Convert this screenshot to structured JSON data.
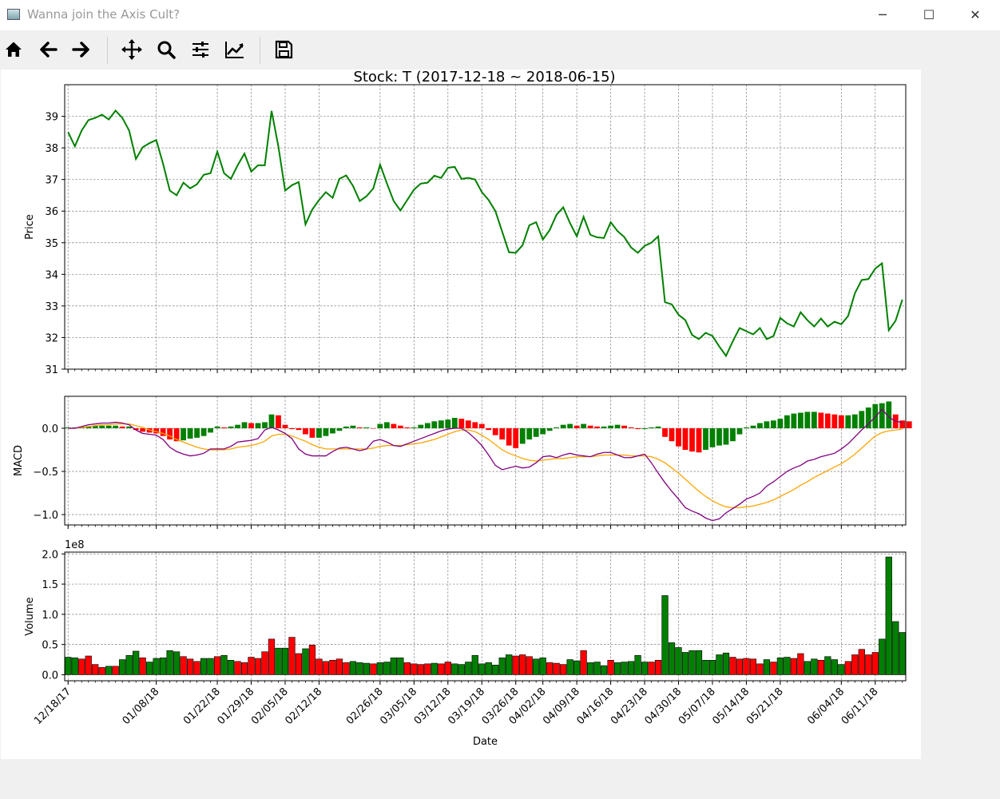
{
  "window": {
    "title": "Wanna join the Axis Cult?",
    "buttons": {
      "minimize": "─",
      "maximize": "☐",
      "close": "✕"
    }
  },
  "toolbar": {
    "items": [
      "home-icon",
      "back-icon",
      "forward-icon",
      "pan-icon",
      "zoom-icon",
      "configure-subplots-icon",
      "edit-axis-icon",
      "save-icon"
    ]
  },
  "chart_data": [
    {
      "type": "line",
      "title": "Stock: T (2017-12-18 ~ 2018-06-15)",
      "ylabel": "Price",
      "ylim": [
        31,
        40
      ],
      "yticks": [
        31,
        32,
        33,
        34,
        35,
        36,
        37,
        38,
        39
      ],
      "grid": true,
      "color": "#008000",
      "series": [
        {
          "values": [
            38.5,
            38.05,
            38.55,
            38.88,
            38.95,
            39.05,
            38.9,
            39.18,
            38.95,
            38.55,
            37.65,
            38.02,
            38.15,
            38.25,
            37.5,
            36.65,
            36.5,
            36.9,
            36.72,
            36.85,
            37.15,
            37.2,
            37.88,
            37.2,
            37.02,
            37.45,
            37.82,
            37.25,
            37.45,
            37.45,
            39.17,
            38.05,
            36.65,
            36.82,
            36.92,
            35.58,
            36.05,
            36.35,
            36.6,
            36.42,
            37.02,
            37.13,
            36.8,
            36.32,
            36.47,
            36.72,
            37.47,
            36.88,
            36.32,
            36.02,
            36.35,
            36.68,
            36.87,
            36.9,
            37.12,
            37.05,
            37.37,
            37.4,
            37.02,
            37.05,
            37.0,
            36.6,
            36.35,
            36.0,
            35.35,
            34.7,
            34.68,
            34.92,
            35.55,
            35.65,
            35.1,
            35.4,
            35.88,
            36.12,
            35.62,
            35.2,
            35.82,
            35.25,
            35.17,
            35.15,
            35.65,
            35.37,
            35.18,
            34.85,
            34.68,
            34.9,
            35.0,
            35.2,
            33.12,
            33.05,
            32.72,
            32.55,
            32.08,
            31.95,
            32.15,
            32.05,
            31.72,
            31.42,
            31.88,
            32.3,
            32.2,
            32.1,
            32.3,
            31.95,
            32.05,
            32.62,
            32.45,
            32.35,
            32.8,
            32.55,
            32.35,
            32.6,
            32.35,
            32.5,
            32.42,
            32.68,
            33.4,
            33.82,
            33.85,
            34.18,
            34.35,
            32.23,
            32.53,
            33.2
          ]
        }
      ]
    },
    {
      "type": "bar",
      "ylabel": "MACD",
      "ylim": [
        -1.12,
        0.37
      ],
      "yticks": [
        0.0,
        -0.5,
        -1.0
      ],
      "ytick_labels": [
        "0.0",
        "−0.5",
        "−1.0"
      ],
      "grid": true,
      "histogram": [
        0.01,
        0.01,
        0.01,
        0.02,
        0.03,
        0.03,
        0.03,
        0.03,
        0.02,
        0.02,
        -0.02,
        -0.04,
        -0.05,
        -0.06,
        -0.09,
        -0.13,
        -0.15,
        -0.14,
        -0.12,
        -0.11,
        -0.09,
        -0.05,
        0.02,
        0.01,
        0.02,
        0.04,
        0.07,
        0.06,
        0.06,
        0.07,
        0.16,
        0.15,
        0.04,
        -0.01,
        -0.02,
        -0.07,
        -0.11,
        -0.11,
        -0.09,
        -0.06,
        -0.03,
        0.02,
        0.03,
        0.01,
        0.01,
        0.0,
        0.05,
        0.07,
        0.05,
        0.03,
        0.01,
        0.01,
        0.04,
        0.06,
        0.08,
        0.09,
        0.1,
        0.12,
        0.11,
        0.09,
        0.07,
        0.05,
        -0.02,
        -0.08,
        -0.13,
        -0.2,
        -0.23,
        -0.18,
        -0.13,
        -0.1,
        -0.07,
        -0.03,
        0.01,
        0.04,
        0.05,
        0.03,
        0.05,
        0.03,
        0.02,
        0.02,
        0.03,
        0.04,
        0.03,
        0.01,
        -0.01,
        -0.01,
        0.01,
        0.02,
        -0.1,
        -0.15,
        -0.21,
        -0.25,
        -0.27,
        -0.28,
        -0.25,
        -0.22,
        -0.2,
        -0.19,
        -0.15,
        -0.07,
        0.01,
        0.03,
        0.06,
        0.08,
        0.09,
        0.11,
        0.15,
        0.17,
        0.18,
        0.19,
        0.19,
        0.18,
        0.17,
        0.16,
        0.15,
        0.15,
        0.16,
        0.2,
        0.24,
        0.28,
        0.29,
        0.31,
        0.16,
        0.09,
        0.08
      ],
      "macd": [
        0.0,
        0.0,
        0.02,
        0.04,
        0.05,
        0.06,
        0.06,
        0.07,
        0.06,
        0.04,
        -0.02,
        -0.06,
        -0.07,
        -0.08,
        -0.13,
        -0.22,
        -0.27,
        -0.3,
        -0.32,
        -0.31,
        -0.29,
        -0.24,
        -0.24,
        -0.24,
        -0.21,
        -0.16,
        -0.15,
        -0.14,
        -0.12,
        -0.02,
        0.01,
        -0.02,
        -0.06,
        -0.12,
        -0.24,
        -0.3,
        -0.32,
        -0.32,
        -0.32,
        -0.27,
        -0.23,
        -0.22,
        -0.24,
        -0.26,
        -0.24,
        -0.15,
        -0.13,
        -0.16,
        -0.2,
        -0.21,
        -0.18,
        -0.15,
        -0.12,
        -0.09,
        -0.06,
        -0.03,
        -0.01,
        -0.0,
        0.0,
        -0.05,
        -0.12,
        -0.2,
        -0.31,
        -0.43,
        -0.48,
        -0.46,
        -0.44,
        -0.46,
        -0.45,
        -0.4,
        -0.33,
        -0.32,
        -0.34,
        -0.31,
        -0.29,
        -0.31,
        -0.32,
        -0.33,
        -0.3,
        -0.28,
        -0.28,
        -0.31,
        -0.34,
        -0.34,
        -0.32,
        -0.3,
        -0.4,
        -0.52,
        -0.63,
        -0.73,
        -0.82,
        -0.92,
        -0.96,
        -0.99,
        -1.04,
        -1.07,
        -1.05,
        -0.98,
        -0.93,
        -0.88,
        -0.82,
        -0.79,
        -0.75,
        -0.67,
        -0.62,
        -0.56,
        -0.5,
        -0.46,
        -0.43,
        -0.38,
        -0.36,
        -0.33,
        -0.31,
        -0.29,
        -0.24,
        -0.18,
        -0.1,
        -0.02,
        0.05,
        0.13,
        0.22,
        0.13,
        0.08,
        0.07
      ],
      "signal": [
        0.0,
        0.0,
        0.01,
        0.02,
        0.03,
        0.04,
        0.04,
        0.05,
        0.05,
        0.05,
        0.03,
        0.01,
        -0.02,
        -0.04,
        -0.06,
        -0.09,
        -0.13,
        -0.16,
        -0.19,
        -0.22,
        -0.24,
        -0.25,
        -0.25,
        -0.25,
        -0.24,
        -0.22,
        -0.21,
        -0.2,
        -0.18,
        -0.15,
        -0.09,
        -0.07,
        -0.07,
        -0.09,
        -0.12,
        -0.15,
        -0.19,
        -0.22,
        -0.24,
        -0.24,
        -0.24,
        -0.24,
        -0.24,
        -0.24,
        -0.24,
        -0.23,
        -0.21,
        -0.2,
        -0.2,
        -0.2,
        -0.19,
        -0.18,
        -0.17,
        -0.15,
        -0.13,
        -0.1,
        -0.07,
        -0.04,
        -0.02,
        -0.02,
        -0.04,
        -0.08,
        -0.13,
        -0.19,
        -0.25,
        -0.29,
        -0.32,
        -0.35,
        -0.37,
        -0.38,
        -0.37,
        -0.36,
        -0.35,
        -0.35,
        -0.34,
        -0.33,
        -0.33,
        -0.33,
        -0.32,
        -0.31,
        -0.31,
        -0.31,
        -0.31,
        -0.32,
        -0.32,
        -0.32,
        -0.33,
        -0.36,
        -0.4,
        -0.46,
        -0.52,
        -0.59,
        -0.66,
        -0.73,
        -0.79,
        -0.84,
        -0.88,
        -0.91,
        -0.92,
        -0.92,
        -0.91,
        -0.9,
        -0.88,
        -0.86,
        -0.83,
        -0.79,
        -0.75,
        -0.71,
        -0.66,
        -0.62,
        -0.57,
        -0.53,
        -0.49,
        -0.45,
        -0.41,
        -0.36,
        -0.3,
        -0.23,
        -0.16,
        -0.09,
        -0.05,
        -0.03,
        -0.02,
        -0.01
      ],
      "colors": {
        "up": "#008000",
        "down": "#ff0000",
        "macd": "#800080",
        "signal": "#ffa500"
      }
    },
    {
      "type": "bar",
      "ylabel": "Volume",
      "multiplier_label": "1e8",
      "ylim": [
        -0.1,
        2.03
      ],
      "yticks": [
        0.0,
        0.5,
        1.0,
        1.5,
        2.0
      ],
      "ytick_labels": [
        "0.0",
        "0.5",
        "1.0",
        "1.5",
        "2.0"
      ],
      "grid": true,
      "xlabel": "Date",
      "xtick_labels": [
        "12/18/17",
        "01/08/18",
        "01/22/18",
        "01/29/18",
        "02/05/18",
        "02/12/18",
        "02/26/18",
        "03/05/18",
        "03/12/18",
        "03/19/18",
        "03/26/18",
        "04/02/18",
        "04/09/18",
        "04/16/18",
        "04/23/18",
        "04/30/18",
        "05/07/18",
        "05/14/18",
        "05/21/18",
        "06/04/18",
        "06/11/18"
      ],
      "xtick_index": [
        0,
        13,
        22,
        27,
        32,
        37,
        46,
        51,
        56,
        61,
        66,
        70,
        75,
        80,
        85,
        90,
        95,
        100,
        105,
        114,
        119
      ],
      "values": [
        0.29,
        0.28,
        0.26,
        0.31,
        0.17,
        0.12,
        0.14,
        0.14,
        0.25,
        0.32,
        0.39,
        0.28,
        0.21,
        0.27,
        0.28,
        0.4,
        0.38,
        0.3,
        0.26,
        0.22,
        0.27,
        0.27,
        0.3,
        0.32,
        0.24,
        0.22,
        0.2,
        0.29,
        0.27,
        0.38,
        0.59,
        0.44,
        0.44,
        0.62,
        0.35,
        0.43,
        0.49,
        0.26,
        0.22,
        0.24,
        0.26,
        0.2,
        0.22,
        0.2,
        0.19,
        0.18,
        0.2,
        0.21,
        0.28,
        0.28,
        0.2,
        0.18,
        0.17,
        0.18,
        0.19,
        0.18,
        0.21,
        0.18,
        0.17,
        0.21,
        0.32,
        0.18,
        0.2,
        0.16,
        0.28,
        0.33,
        0.31,
        0.33,
        0.3,
        0.26,
        0.28,
        0.2,
        0.19,
        0.17,
        0.25,
        0.23,
        0.4,
        0.2,
        0.21,
        0.15,
        0.24,
        0.2,
        0.21,
        0.22,
        0.32,
        0.21,
        0.21,
        0.24,
        1.31,
        0.53,
        0.45,
        0.37,
        0.4,
        0.4,
        0.24,
        0.24,
        0.33,
        0.36,
        0.29,
        0.26,
        0.27,
        0.26,
        0.18,
        0.25,
        0.21,
        0.28,
        0.29,
        0.27,
        0.35,
        0.22,
        0.26,
        0.24,
        0.3,
        0.25,
        0.17,
        0.22,
        0.33,
        0.42,
        0.33,
        0.37,
        0.59,
        1.95,
        0.88,
        0.7
      ],
      "bar_colors": [
        "#008000",
        "#008000",
        "#ff0000",
        "#ff0000",
        "#ff0000",
        "#ff0000",
        "#008000",
        "#ff0000",
        "#008000",
        "#008000",
        "#008000",
        "#ff0000",
        "#008000",
        "#008000",
        "#008000",
        "#008000",
        "#008000",
        "#ff0000",
        "#ff0000",
        "#ff0000",
        "#008000",
        "#008000",
        "#ff0000",
        "#008000",
        "#008000",
        "#ff0000",
        "#ff0000",
        "#ff0000",
        "#ff0000",
        "#ff0000",
        "#ff0000",
        "#008000",
        "#008000",
        "#ff0000",
        "#ff0000",
        "#008000",
        "#ff0000",
        "#ff0000",
        "#ff0000",
        "#ff0000",
        "#ff0000",
        "#ff0000",
        "#008000",
        "#008000",
        "#008000",
        "#ff0000",
        "#008000",
        "#008000",
        "#008000",
        "#008000",
        "#ff0000",
        "#ff0000",
        "#ff0000",
        "#ff0000",
        "#008000",
        "#ff0000",
        "#ff0000",
        "#008000",
        "#008000",
        "#008000",
        "#008000",
        "#008000",
        "#008000",
        "#008000",
        "#008000",
        "#008000",
        "#ff0000",
        "#ff0000",
        "#ff0000",
        "#008000",
        "#008000",
        "#ff0000",
        "#ff0000",
        "#ff0000",
        "#008000",
        "#008000",
        "#ff0000",
        "#008000",
        "#008000",
        "#008000",
        "#ff0000",
        "#008000",
        "#008000",
        "#008000",
        "#008000",
        "#008000",
        "#ff0000",
        "#ff0000",
        "#008000",
        "#008000",
        "#008000",
        "#008000",
        "#008000",
        "#008000",
        "#008000",
        "#008000",
        "#008000",
        "#008000",
        "#ff0000",
        "#ff0000",
        "#ff0000",
        "#ff0000",
        "#ff0000",
        "#008000",
        "#ff0000",
        "#008000",
        "#008000",
        "#ff0000",
        "#ff0000",
        "#008000",
        "#008000",
        "#ff0000",
        "#008000",
        "#008000",
        "#008000",
        "#ff0000",
        "#ff0000",
        "#ff0000",
        "#ff0000",
        "#ff0000",
        "#008000",
        "#008000",
        "#008000",
        "#008000",
        "#008000",
        "#ff0000"
      ]
    }
  ]
}
